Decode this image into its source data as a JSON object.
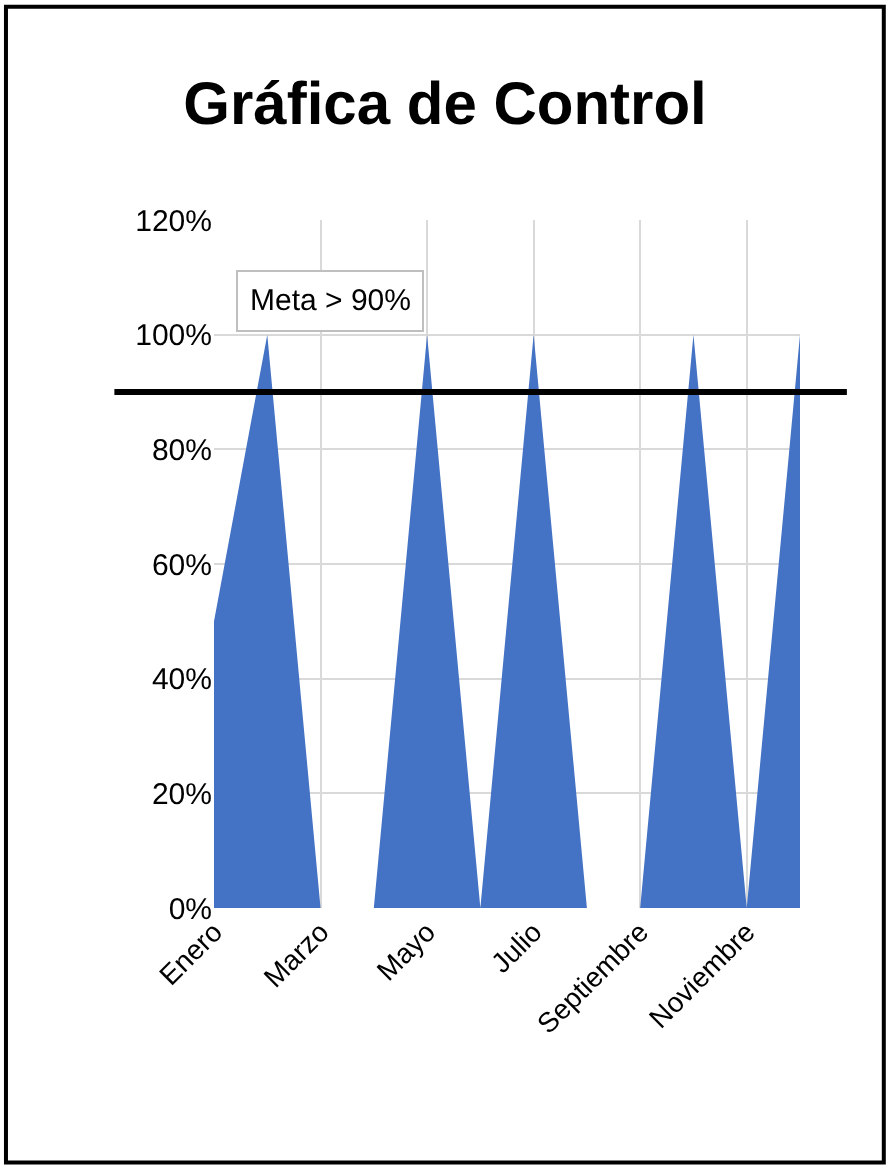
{
  "chart_data": {
    "type": "area",
    "title": "Gráfica de Control",
    "categories": [
      "Enero",
      null,
      "Marzo",
      null,
      "Mayo",
      null,
      "Julio",
      null,
      "Septiembre",
      null,
      "Noviembre",
      null
    ],
    "series": [
      {
        "color": "#4472c4",
        "values": [
          50,
          100,
          0,
          0,
          100,
          0,
          100,
          0,
          0,
          100,
          0,
          100
        ]
      }
    ],
    "ylim": [
      0,
      120
    ],
    "yticks": [
      {
        "value": 0,
        "label": "0%"
      },
      {
        "value": 20,
        "label": "20%"
      },
      {
        "value": 40,
        "label": "40%"
      },
      {
        "value": 60,
        "label": "60%"
      },
      {
        "value": 80,
        "label": "80%"
      },
      {
        "value": 100,
        "label": "100%"
      },
      {
        "value": 120,
        "label": "120%"
      }
    ],
    "ref_lines": [
      {
        "axis": "y",
        "value": 90,
        "label": "Meta > 90%",
        "color": "#000000"
      }
    ],
    "grid": true
  }
}
